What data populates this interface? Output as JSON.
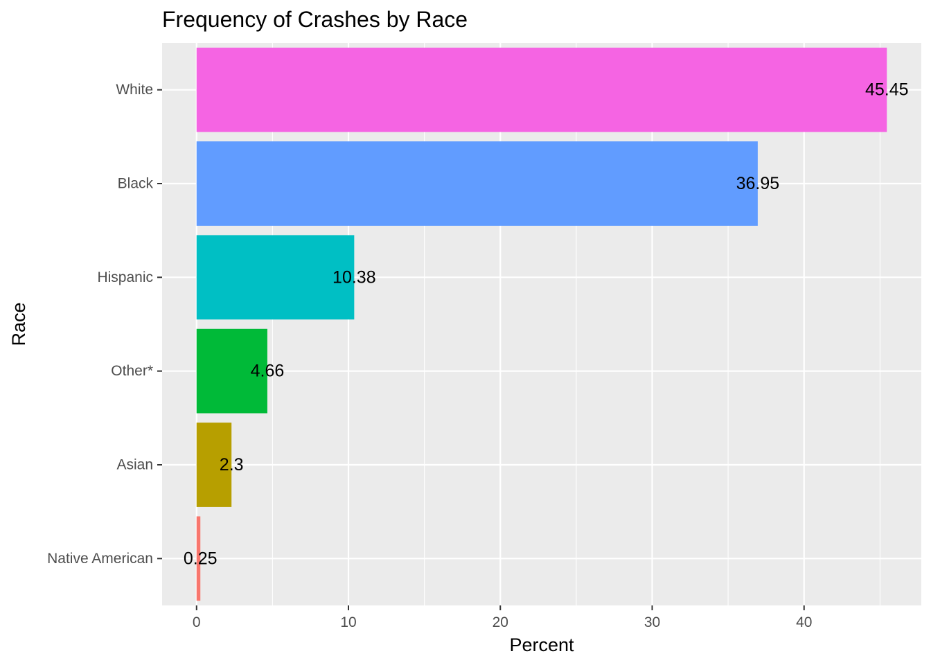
{
  "chart_data": {
    "type": "bar",
    "orientation": "horizontal",
    "title": "Frequency of Crashes by Race",
    "xlabel": "Percent",
    "ylabel": "Race",
    "categories": [
      "Native American",
      "Asian",
      "Other*",
      "Hispanic",
      "Black",
      "White"
    ],
    "values": [
      0.25,
      2.3,
      4.66,
      10.38,
      36.95,
      45.45
    ],
    "data_labels": [
      "0.25",
      "2.3",
      "4.66",
      "10.38",
      "36.95",
      "45.45"
    ],
    "colors": [
      "#F8766D",
      "#B79F00",
      "#00BA38",
      "#00BFC4",
      "#619CFF",
      "#F564E3"
    ],
    "xticks": [
      0,
      10,
      20,
      30,
      40
    ],
    "xtick_labels": [
      "0",
      "10",
      "20",
      "30",
      "40"
    ],
    "xlim": [
      -2.27,
      47.72
    ],
    "grid": true,
    "legend": "none",
    "panel_background": "#EBEBEB"
  }
}
